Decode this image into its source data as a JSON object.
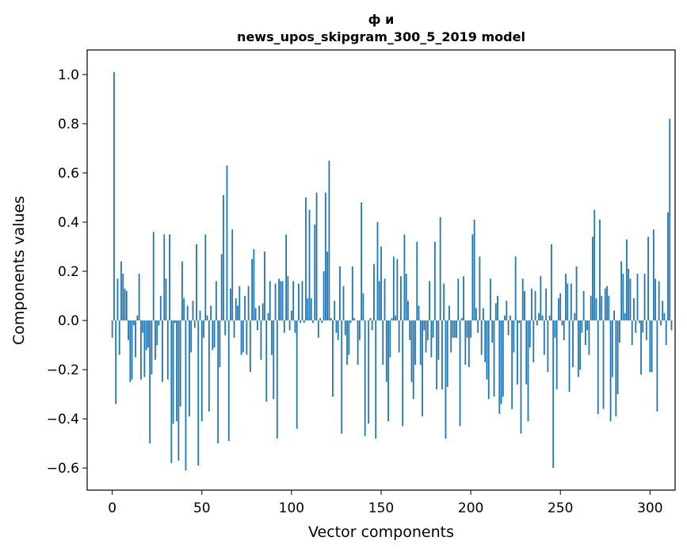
{
  "chart_data": {
    "type": "bar",
    "title_line1": "ф и",
    "title_line2": "news_upos_skipgram_300_5_2019 model",
    "xlabel": "Vector components",
    "ylabel": "Components values",
    "xlim": [
      -14,
      314
    ],
    "ylim": [
      -0.69,
      1.1
    ],
    "xticks": [
      0,
      50,
      100,
      150,
      200,
      250,
      300
    ],
    "xtick_labels": [
      "0",
      "50",
      "100",
      "150",
      "200",
      "250",
      "300"
    ],
    "yticks": [
      -0.6,
      -0.4,
      -0.2,
      0.0,
      0.2,
      0.4,
      0.6,
      0.8,
      1.0
    ],
    "ytick_labels": [
      "−0.6",
      "−0.4",
      "−0.2",
      "0.0",
      "0.2",
      "0.4",
      "0.6",
      "0.8",
      "1.0"
    ],
    "bar_color": "#1f77b4",
    "grid": false,
    "values": [
      -0.07,
      1.01,
      -0.34,
      0.17,
      -0.14,
      0.24,
      0.19,
      0.13,
      0.12,
      -0.08,
      -0.25,
      -0.24,
      -0.02,
      -0.15,
      0.02,
      0.19,
      -0.24,
      -0.05,
      -0.23,
      -0.12,
      -0.11,
      -0.5,
      -0.22,
      0.36,
      -0.16,
      -0.1,
      -0.02,
      0.1,
      -0.25,
      0.35,
      0.17,
      -0.24,
      0.35,
      -0.58,
      -0.42,
      -0.01,
      -0.41,
      -0.57,
      -0.35,
      0.24,
      0.09,
      -0.61,
      0.06,
      -0.39,
      -0.13,
      0.08,
      -0.03,
      0.31,
      -0.59,
      0.04,
      -0.41,
      -0.07,
      0.35,
      0.02,
      -0.37,
      0.06,
      -0.12,
      -0.11,
      0.16,
      -0.5,
      -0.19,
      0.27,
      0.51,
      -0.06,
      0.63,
      -0.49,
      0.13,
      0.37,
      -0.07,
      0.09,
      0.06,
      0.14,
      -0.14,
      -0.13,
      0.1,
      -0.14,
      0.14,
      -0.21,
      0.25,
      0.29,
      0.05,
      -0.04,
      0.06,
      -0.16,
      0.07,
      0.28,
      -0.33,
      0.03,
      0.16,
      -0.14,
      -0.32,
      0.15,
      -0.48,
      0.17,
      0.16,
      0.16,
      -0.05,
      0.35,
      0.18,
      -0.04,
      0.04,
      0.16,
      -0.05,
      -0.44,
      0.15,
      -0.01,
      0.16,
      -0.01,
      0.5,
      0.09,
      0.45,
      0.09,
      -0.01,
      0.39,
      0.52,
      -0.07,
      0.01,
      -0.01,
      0.2,
      0.52,
      0.28,
      0.65,
      0.01,
      -0.31,
      0.08,
      -0.05,
      -0.08,
      0.22,
      -0.46,
      0.14,
      -0.06,
      -0.18,
      -0.14,
      -0.01,
      0.22,
      0.01,
      0.0,
      -0.18,
      -0.08,
      0.48,
      0.11,
      -0.47,
      0.0,
      -0.42,
      0.01,
      -0.04,
      0.23,
      -0.48,
      0.4,
      0.16,
      0.3,
      -0.18,
      0.17,
      -0.25,
      -0.41,
      -0.15,
      0.01,
      0.26,
      0.02,
      0.25,
      -0.13,
      0.18,
      -0.43,
      0.35,
      0.19,
      0.08,
      -0.08,
      -0.25,
      -0.32,
      -0.18,
      0.32,
      0.06,
      -0.18,
      -0.39,
      -0.04,
      -0.13,
      -0.08,
      0.16,
      -0.15,
      -0.07,
      0.32,
      -0.28,
      -0.16,
      0.42,
      -0.28,
      0.15,
      -0.48,
      -0.27,
      0.06,
      -0.13,
      -0.07,
      -0.07,
      -0.07,
      0.17,
      -0.43,
      0.01,
      0.18,
      -0.18,
      -0.07,
      -0.19,
      -0.07,
      0.35,
      0.41,
      0.05,
      -0.05,
      0.26,
      -0.14,
      0.05,
      -0.17,
      -0.24,
      -0.32,
      0.17,
      -0.09,
      -0.31,
      0.07,
      0.1,
      -0.38,
      -0.34,
      -0.31,
      0.02,
      0.08,
      -0.06,
      0.02,
      -0.36,
      -0.13,
      0.26,
      -0.26,
      -0.01,
      -0.46,
      0.17,
      0.12,
      -0.26,
      -0.41,
      -0.11,
      0.13,
      -0.17,
      0.12,
      -0.02,
      0.03,
      0.18,
      0.02,
      -0.14,
      0.13,
      -0.21,
      0.02,
      0.31,
      -0.6,
      -0.07,
      -0.28,
      0.09,
      0.11,
      -0.02,
      -0.08,
      0.19,
      0.15,
      -0.29,
      0.15,
      -0.19,
      0.03,
      0.22,
      -0.23,
      -0.2,
      -0.05,
      0.12,
      -0.1,
      -0.04,
      -0.14,
      0.1,
      0.34,
      0.45,
      0.09,
      -0.38,
      0.41,
      0.1,
      -0.36,
      0.13,
      0.14,
      0.1,
      -0.41,
      -0.23,
      0.04,
      -0.39,
      -0.3,
      -0.09,
      0.24,
      0.19,
      0.03,
      0.33,
      0.21,
      0.17,
      -0.1,
      0.09,
      -0.05,
      0.19,
      -0.01,
      -0.22,
      -0.05,
      0.19,
      -0.08,
      0.34,
      -0.21,
      -0.21,
      0.37,
      0.17,
      -0.37,
      0.16,
      -0.02,
      0.08,
      0.03,
      -0.1,
      0.44,
      0.82,
      -0.04
    ]
  }
}
